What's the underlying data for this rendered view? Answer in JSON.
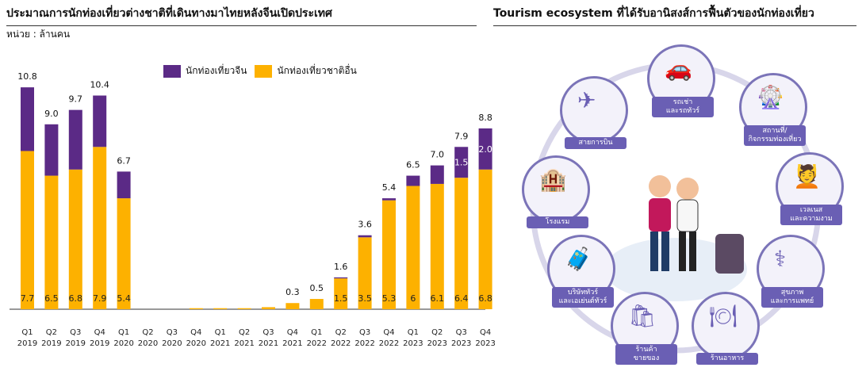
{
  "left_panel": {
    "title": "ประมาณการนักท่องเที่ยวต่างชาติที่เดินทางมาไทยหลังจีนเปิดประเทศ",
    "unit": "หน่วย : ล้านคน"
  },
  "right_panel": {
    "title": "Tourism ecosystem ที่ได้รับอานิสงส์การฟื้นตัวของนักท่องเที่ยว",
    "nodes": [
      {
        "label": "รถเช่า\nและรถทัวร์",
        "icon": "car-icon"
      },
      {
        "label": "สายการบิน",
        "icon": "airplane-icon"
      },
      {
        "label": "สถานที่/\nกิจกรรมท่องเที่ยว",
        "icon": "ferris-wheel-icon"
      },
      {
        "label": "โรงแรม",
        "icon": "hotel-icon"
      },
      {
        "label": "เวลเนส\nและความงาม",
        "icon": "spa-icon"
      },
      {
        "label": "บริษัททัวร์\nและเอเย่นต์ทัวร์",
        "icon": "tour-agent-icon"
      },
      {
        "label": "สุขภาพ\nและการแพทย์",
        "icon": "medical-icon"
      },
      {
        "label": "ร้านค้า\nขายของ",
        "icon": "shop-icon"
      },
      {
        "label": "ร้านอาหาร",
        "icon": "restaurant-icon"
      }
    ]
  },
  "chart_data": {
    "type": "bar",
    "stacked": true,
    "title": "ประมาณการนักท่องเที่ยวต่างชาติที่เดินทางมาไทยหลังจีนเปิดประเทศ",
    "ylabel": "หน่วย : ล้านคน",
    "categories": [
      [
        "Q1",
        "2019"
      ],
      [
        "Q2",
        "2019"
      ],
      [
        "Q3",
        "2019"
      ],
      [
        "Q4",
        "2019"
      ],
      [
        "Q1",
        "2020"
      ],
      [
        "Q2",
        "2020"
      ],
      [
        "Q3",
        "2020"
      ],
      [
        "Q4",
        "2020"
      ],
      [
        "Q1",
        "2021"
      ],
      [
        "Q2",
        "2021"
      ],
      [
        "Q3",
        "2021"
      ],
      [
        "Q4",
        "2021"
      ],
      [
        "Q1",
        "2022"
      ],
      [
        "Q2",
        "2022"
      ],
      [
        "Q3",
        "2022"
      ],
      [
        "Q4",
        "2022"
      ],
      [
        "Q1",
        "2023"
      ],
      [
        "Q2",
        "2023"
      ],
      [
        "Q3",
        "2023"
      ],
      [
        "Q4",
        "2023"
      ]
    ],
    "series": [
      {
        "name": "นักท่องเที่ยวชาติอื่น",
        "color": "#FDB100",
        "values": [
          7.7,
          6.5,
          6.8,
          7.9,
          5.4,
          0,
          0,
          0.05,
          0.05,
          0.05,
          0.1,
          0.3,
          0.5,
          1.5,
          3.5,
          5.3,
          6,
          6.1,
          6.4,
          6.8
        ],
        "labels": [
          "7.7",
          "6.5",
          "6.8",
          "7.9",
          "5.4",
          "",
          "",
          "",
          "",
          "",
          "",
          "",
          "",
          "1.5",
          "3.5",
          "5.3",
          "6",
          "6.1",
          "6.4",
          "6.8"
        ]
      },
      {
        "name": "นักท่องเที่ยวจีน",
        "color": "#5B2A86",
        "values": [
          3.1,
          2.5,
          2.9,
          2.5,
          1.3,
          0,
          0,
          0,
          0,
          0,
          0,
          0,
          0,
          0.05,
          0.1,
          0.1,
          0.5,
          0.9,
          1.5,
          2.0
        ],
        "labels": [
          "",
          "",
          "",
          "",
          "",
          "",
          "",
          "",
          "",
          "",
          "",
          "",
          "",
          "",
          "",
          "",
          "",
          "",
          "1.5",
          "2.0"
        ]
      }
    ],
    "totals": [
      "10.8",
      "9.0",
      "9.7",
      "10.4",
      "6.7",
      "",
      "",
      "",
      "",
      "",
      "",
      "0.3",
      "0.5",
      "1.6",
      "3.6",
      "5.4",
      "6.5",
      "7.0",
      "7.9",
      "8.8"
    ],
    "ylim": [
      0,
      11.5
    ],
    "grid": false,
    "legend_position": "top"
  }
}
